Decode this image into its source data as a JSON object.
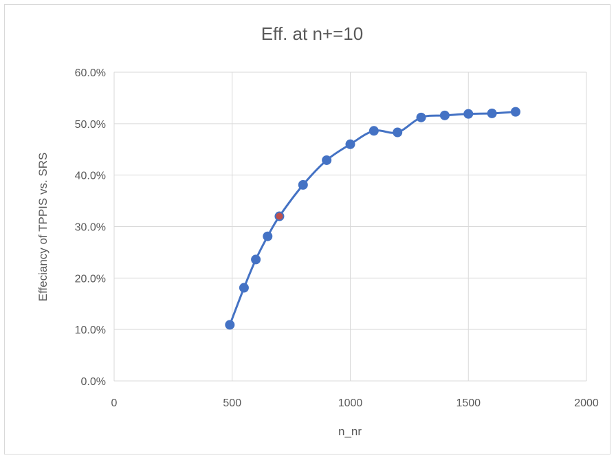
{
  "chart_data": {
    "type": "scatter",
    "title": "Eff. at n+=10",
    "xlabel": "n_nr",
    "ylabel": "Effeciancy of TPPIS vs. SRS",
    "xlim": [
      0,
      2000
    ],
    "ylim": [
      0,
      0.6
    ],
    "x_ticks": [
      0,
      500,
      1000,
      1500,
      2000
    ],
    "y_ticks": [
      0,
      0.1,
      0.2,
      0.3,
      0.4,
      0.5,
      0.6
    ],
    "x_tick_labels": [
      "0",
      "500",
      "1000",
      "1500",
      "2000"
    ],
    "y_tick_labels": [
      "0.0%",
      "10.0%",
      "20.0%",
      "30.0%",
      "40.0%",
      "50.0%",
      "60.0%"
    ],
    "grid": true,
    "legend": "none",
    "series": [
      {
        "color": "#4472c4",
        "smooth": true,
        "x": [
          490,
          550,
          600,
          650,
          700,
          800,
          900,
          1000,
          1100,
          1200,
          1300,
          1400,
          1500,
          1600,
          1700
        ],
        "y": [
          0.109,
          0.181,
          0.236,
          0.281,
          0.32,
          0.381,
          0.429,
          0.46,
          0.486,
          0.483,
          0.512,
          0.516,
          0.519,
          0.52,
          0.523
        ]
      }
    ],
    "highlight_point": {
      "x": 700,
      "y": 0.32,
      "color": "#c0504d"
    }
  }
}
